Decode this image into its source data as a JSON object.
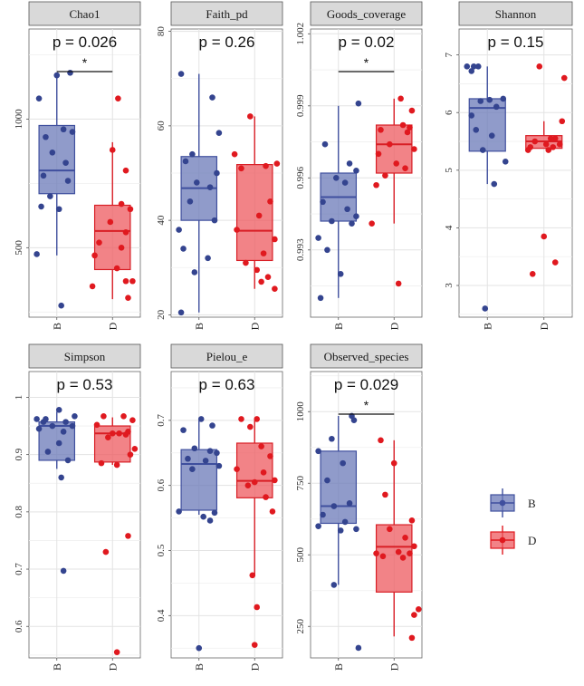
{
  "legend": {
    "items": [
      {
        "label": "B",
        "color": "#3f4f9e"
      },
      {
        "label": "D",
        "color": "#e0191f"
      }
    ]
  },
  "colors": {
    "B_fill": "#6b79b8",
    "B_stroke": "#3f4f9e",
    "B_point": "#34448f",
    "D_fill": "#ee5a5f",
    "D_stroke": "#d81e25",
    "D_point": "#e0191f",
    "strip": "#d9d9d9",
    "grid": "#e3e3e3"
  },
  "chart_data": [
    {
      "type": "box",
      "title": "Chao1",
      "pvalue": "p = 0.026",
      "significance": "*",
      "categories": [
        "B",
        "D"
      ],
      "ylim": [
        230,
        1350
      ],
      "yticks": [
        500,
        1000
      ],
      "boxes": [
        {
          "group": "B",
          "min": 470,
          "q1": 710,
          "median": 800,
          "q3": 975,
          "max": 1170
        },
        {
          "group": "D",
          "min": 300,
          "q1": 415,
          "median": 565,
          "q3": 665,
          "max": 910
        }
      ],
      "points": {
        "B": [
          [
            -0.16,
            1080
          ],
          [
            0.0,
            1170
          ],
          [
            0.12,
            1180
          ],
          [
            -0.1,
            930
          ],
          [
            0.06,
            960
          ],
          [
            0.14,
            950
          ],
          [
            -0.04,
            870
          ],
          [
            0.08,
            830
          ],
          [
            -0.12,
            780
          ],
          [
            0.1,
            760
          ],
          [
            -0.06,
            700
          ],
          [
            0.02,
            650
          ],
          [
            -0.14,
            660
          ],
          [
            -0.18,
            475
          ],
          [
            0.04,
            275
          ]
        ],
        "D": [
          [
            0.05,
            1080
          ],
          [
            0.0,
            880
          ],
          [
            0.12,
            800
          ],
          [
            0.08,
            670
          ],
          [
            0.16,
            650
          ],
          [
            -0.02,
            600
          ],
          [
            0.12,
            560
          ],
          [
            -0.12,
            520
          ],
          [
            0.08,
            500
          ],
          [
            -0.16,
            470
          ],
          [
            0.04,
            420
          ],
          [
            -0.18,
            350
          ],
          [
            0.12,
            370
          ],
          [
            0.18,
            370
          ],
          [
            0.14,
            305
          ]
        ]
      }
    },
    {
      "type": "box",
      "title": "Faith_pd",
      "pvalue": "p = 0.26",
      "significance": "",
      "categories": [
        "B",
        "D"
      ],
      "ylim": [
        19.5,
        80.5
      ],
      "yticks": [
        20,
        40,
        60,
        80
      ],
      "boxes": [
        {
          "group": "B",
          "min": 20.5,
          "q1": 40.0,
          "median": 46.8,
          "q3": 53.5,
          "max": 71.0
        },
        {
          "group": "D",
          "min": 25.5,
          "q1": 31.5,
          "median": 37.8,
          "q3": 51.8,
          "max": 62.0
        }
      ],
      "points": {
        "B": [
          [
            -0.16,
            71.0
          ],
          [
            0.12,
            66.0
          ],
          [
            0.18,
            58.5
          ],
          [
            -0.06,
            54.0
          ],
          [
            -0.12,
            52.5
          ],
          [
            0.16,
            50.0
          ],
          [
            -0.02,
            48.0
          ],
          [
            0.1,
            47.0
          ],
          [
            -0.08,
            44.0
          ],
          [
            -0.18,
            38.0
          ],
          [
            0.14,
            40.0
          ],
          [
            -0.14,
            34.0
          ],
          [
            0.08,
            32.0
          ],
          [
            -0.04,
            29.0
          ],
          [
            -0.16,
            20.5
          ]
        ],
        "D": [
          [
            -0.18,
            54.0
          ],
          [
            -0.04,
            62.0
          ],
          [
            0.2,
            52.0
          ],
          [
            0.1,
            51.5
          ],
          [
            -0.12,
            51.0
          ],
          [
            0.14,
            44.0
          ],
          [
            0.04,
            41.0
          ],
          [
            0.18,
            36.0
          ],
          [
            -0.16,
            38.0
          ],
          [
            0.08,
            33.0
          ],
          [
            0.02,
            29.5
          ],
          [
            0.12,
            28.0
          ],
          [
            0.06,
            27.0
          ],
          [
            0.18,
            25.5
          ],
          [
            -0.08,
            31.0
          ]
        ]
      }
    },
    {
      "type": "box",
      "title": "Goods_coverage",
      "pvalue": "p = 0.02",
      "significance": "*",
      "categories": [
        "B",
        "D"
      ],
      "ylim": [
        0.9902,
        1.0022
      ],
      "yticks": [
        0.993,
        0.996,
        0.999,
        1.002
      ],
      "boxes": [
        {
          "group": "B",
          "min": 0.991,
          "q1": 0.9942,
          "median": 0.9952,
          "q3": 0.9962,
          "max": 0.999
        },
        {
          "group": "D",
          "min": 0.9941,
          "q1": 0.9962,
          "median": 0.9974,
          "q3": 0.9982,
          "max": 0.9993
        }
      ],
      "points": {
        "B": [
          [
            0.18,
            0.9991
          ],
          [
            -0.12,
            0.9974
          ],
          [
            0.1,
            0.9966
          ],
          [
            0.16,
            0.9963
          ],
          [
            -0.02,
            0.996
          ],
          [
            0.06,
            0.9958
          ],
          [
            -0.14,
            0.995
          ],
          [
            0.08,
            0.9947
          ],
          [
            0.16,
            0.9944
          ],
          [
            -0.06,
            0.9942
          ],
          [
            0.12,
            0.9941
          ],
          [
            -0.18,
            0.9935
          ],
          [
            -0.1,
            0.993
          ],
          [
            0.02,
            0.992
          ],
          [
            -0.16,
            0.991
          ]
        ],
        "D": [
          [
            0.06,
            0.9993
          ],
          [
            0.16,
            0.9988
          ],
          [
            0.08,
            0.9982
          ],
          [
            0.14,
            0.9981
          ],
          [
            -0.12,
            0.998
          ],
          [
            0.12,
            0.9979
          ],
          [
            -0.04,
            0.9974
          ],
          [
            0.18,
            0.9972
          ],
          [
            -0.14,
            0.997
          ],
          [
            0.02,
            0.9966
          ],
          [
            0.1,
            0.9964
          ],
          [
            -0.08,
            0.9961
          ],
          [
            -0.16,
            0.9957
          ],
          [
            -0.2,
            0.9941
          ],
          [
            0.04,
            0.9916
          ]
        ]
      }
    },
    {
      "type": "box",
      "title": "Shannon",
      "pvalue": "p = 0.15",
      "significance": "",
      "categories": [
        "B",
        "D"
      ],
      "ylim": [
        2.45,
        7.45
      ],
      "yticks": [
        3,
        4,
        5,
        6,
        7
      ],
      "boxes": [
        {
          "group": "B",
          "min": 4.76,
          "q1": 5.33,
          "median": 6.08,
          "q3": 6.24,
          "max": 6.8
        },
        {
          "group": "D",
          "min": 5.38,
          "q1": 5.38,
          "median": 5.5,
          "q3": 5.6,
          "max": 5.85
        }
      ],
      "points": {
        "B": [
          [
            -0.18,
            6.8
          ],
          [
            -0.12,
            6.8
          ],
          [
            -0.08,
            6.8
          ],
          [
            -0.14,
            6.72
          ],
          [
            0.14,
            6.24
          ],
          [
            0.02,
            6.22
          ],
          [
            -0.06,
            6.2
          ],
          [
            0.08,
            6.1
          ],
          [
            -0.14,
            5.95
          ],
          [
            -0.1,
            5.7
          ],
          [
            0.04,
            5.6
          ],
          [
            -0.04,
            5.35
          ],
          [
            0.16,
            5.15
          ],
          [
            0.06,
            4.76
          ],
          [
            -0.02,
            2.6
          ]
        ],
        "D": [
          [
            -0.04,
            6.8
          ],
          [
            0.18,
            6.6
          ],
          [
            0.16,
            5.85
          ],
          [
            0.1,
            5.55
          ],
          [
            0.06,
            5.55
          ],
          [
            -0.08,
            5.5
          ],
          [
            0.02,
            5.45
          ],
          [
            0.14,
            5.45
          ],
          [
            -0.12,
            5.4
          ],
          [
            0.08,
            5.4
          ],
          [
            -0.14,
            5.35
          ],
          [
            0.04,
            5.35
          ],
          [
            0.0,
            3.85
          ],
          [
            0.1,
            3.4
          ],
          [
            -0.1,
            3.2
          ]
        ]
      }
    },
    {
      "type": "box",
      "title": "Simpson",
      "pvalue": "p = 0.53",
      "significance": "",
      "categories": [
        "B",
        "D"
      ],
      "ylim": [
        0.545,
        1.045
      ],
      "yticks": [
        0.6,
        0.7,
        0.8,
        0.9,
        1.0
      ],
      "boxes": [
        {
          "group": "B",
          "min": 0.875,
          "q1": 0.89,
          "median": 0.95,
          "q3": 0.957,
          "max": 0.975
        },
        {
          "group": "D",
          "min": 0.882,
          "q1": 0.887,
          "median": 0.937,
          "q3": 0.95,
          "max": 0.965
        }
      ],
      "points": {
        "B": [
          [
            -0.18,
            0.962
          ],
          [
            -0.1,
            0.962
          ],
          [
            0.02,
            0.978
          ],
          [
            0.16,
            0.967
          ],
          [
            -0.12,
            0.957
          ],
          [
            0.08,
            0.957
          ],
          [
            -0.04,
            0.95
          ],
          [
            0.14,
            0.95
          ],
          [
            -0.16,
            0.945
          ],
          [
            0.06,
            0.94
          ],
          [
            0.02,
            0.92
          ],
          [
            0.1,
            0.89
          ],
          [
            -0.08,
            0.905
          ],
          [
            0.04,
            0.86
          ],
          [
            0.06,
            0.697
          ]
        ],
        "D": [
          [
            -0.08,
            0.967
          ],
          [
            0.1,
            0.967
          ],
          [
            0.18,
            0.96
          ],
          [
            -0.14,
            0.952
          ],
          [
            0.14,
            0.94
          ],
          [
            0.0,
            0.937
          ],
          [
            0.06,
            0.937
          ],
          [
            0.12,
            0.935
          ],
          [
            -0.04,
            0.93
          ],
          [
            0.2,
            0.91
          ],
          [
            0.16,
            0.9
          ],
          [
            -0.1,
            0.885
          ],
          [
            0.04,
            0.882
          ],
          [
            -0.06,
            0.73
          ],
          [
            0.14,
            0.758
          ],
          [
            0.04,
            0.555
          ]
        ]
      }
    },
    {
      "type": "box",
      "title": "Pielou_e",
      "pvalue": "p = 0.63",
      "significance": "",
      "categories": [
        "B",
        "D"
      ],
      "ylim": [
        0.335,
        0.775
      ],
      "yticks": [
        0.4,
        0.5,
        0.6,
        0.7
      ],
      "boxes": [
        {
          "group": "B",
          "min": 0.555,
          "q1": 0.562,
          "median": 0.633,
          "q3": 0.655,
          "max": 0.7
        },
        {
          "group": "D",
          "min": 0.462,
          "q1": 0.581,
          "median": 0.607,
          "q3": 0.665,
          "max": 0.7
        }
      ],
      "points": {
        "B": [
          [
            -0.14,
            0.685
          ],
          [
            0.02,
            0.702
          ],
          [
            0.12,
            0.692
          ],
          [
            -0.04,
            0.657
          ],
          [
            0.1,
            0.653
          ],
          [
            0.16,
            0.65
          ],
          [
            -0.1,
            0.641
          ],
          [
            0.06,
            0.638
          ],
          [
            0.18,
            0.63
          ],
          [
            -0.06,
            0.625
          ],
          [
            -0.18,
            0.56
          ],
          [
            0.14,
            0.558
          ],
          [
            0.04,
            0.552
          ],
          [
            0.1,
            0.546
          ],
          [
            0.0,
            0.35
          ]
        ],
        "D": [
          [
            -0.12,
            0.702
          ],
          [
            0.02,
            0.702
          ],
          [
            -0.04,
            0.69
          ],
          [
            0.06,
            0.66
          ],
          [
            0.14,
            0.645
          ],
          [
            -0.16,
            0.625
          ],
          [
            0.08,
            0.62
          ],
          [
            0.18,
            0.608
          ],
          [
            0.0,
            0.605
          ],
          [
            -0.06,
            0.6
          ],
          [
            0.1,
            0.582
          ],
          [
            0.16,
            0.56
          ],
          [
            -0.02,
            0.462
          ],
          [
            0.02,
            0.413
          ],
          [
            0.0,
            0.355
          ]
        ]
      }
    },
    {
      "type": "box",
      "title": "Observed_species",
      "pvalue": "p = 0.029",
      "significance": "*",
      "categories": [
        "B",
        "D"
      ],
      "ylim": [
        140,
        1140
      ],
      "yticks": [
        250,
        500,
        750,
        1000
      ],
      "boxes": [
        {
          "group": "B",
          "min": 395,
          "q1": 610,
          "median": 670,
          "q3": 862,
          "max": 985
        },
        {
          "group": "D",
          "min": 215,
          "q1": 370,
          "median": 528,
          "q3": 605,
          "max": 900
        }
      ],
      "points": {
        "B": [
          [
            0.12,
            985
          ],
          [
            0.14,
            970
          ],
          [
            -0.06,
            905
          ],
          [
            -0.18,
            862
          ],
          [
            0.04,
            820
          ],
          [
            -0.1,
            760
          ],
          [
            0.1,
            680
          ],
          [
            -0.04,
            670
          ],
          [
            -0.14,
            640
          ],
          [
            0.06,
            615
          ],
          [
            -0.18,
            600
          ],
          [
            0.16,
            590
          ],
          [
            0.02,
            585
          ],
          [
            -0.04,
            395
          ],
          [
            0.18,
            175
          ]
        ],
        "D": [
          [
            -0.12,
            900
          ],
          [
            0.0,
            820
          ],
          [
            -0.08,
            710
          ],
          [
            0.16,
            620
          ],
          [
            -0.04,
            590
          ],
          [
            0.1,
            560
          ],
          [
            0.18,
            530
          ],
          [
            0.04,
            510
          ],
          [
            -0.16,
            505
          ],
          [
            -0.1,
            495
          ],
          [
            0.14,
            505
          ],
          [
            0.08,
            490
          ],
          [
            0.22,
            310
          ],
          [
            0.18,
            290
          ],
          [
            0.16,
            210
          ]
        ]
      }
    }
  ]
}
